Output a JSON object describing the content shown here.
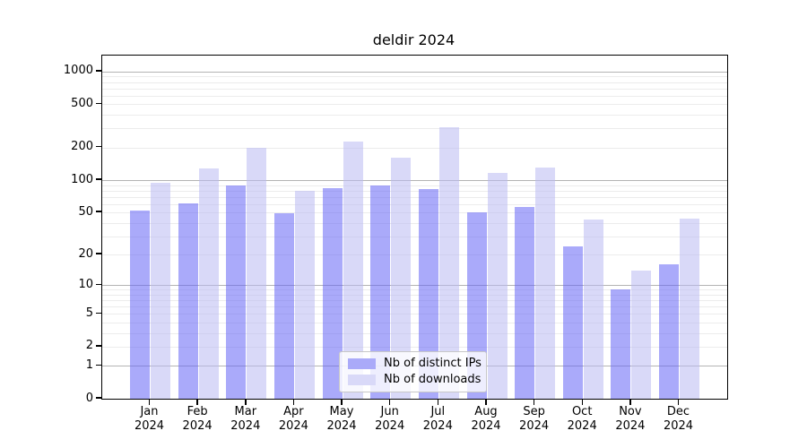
{
  "chart_data": {
    "type": "bar",
    "title": "deldir 2024",
    "months": [
      "Jan",
      "Feb",
      "Mar",
      "Apr",
      "May",
      "Jun",
      "Jul",
      "Aug",
      "Sep",
      "Oct",
      "Nov",
      "Dec"
    ],
    "year": "2024",
    "categories": [
      "Jan 2024",
      "Feb 2024",
      "Mar 2024",
      "Apr 2024",
      "May 2024",
      "Jun 2024",
      "Jul 2024",
      "Aug 2024",
      "Sep 2024",
      "Oct 2024",
      "Nov 2024",
      "Dec 2024"
    ],
    "series": [
      {
        "name": "Nb of distinct IPs",
        "key": "distinct-ips",
        "fill": "rgba(100,100,245,0.55)",
        "hex_over_white": "#aaaaf9",
        "values": [
          52,
          61,
          90,
          49,
          85,
          90,
          82,
          50,
          56,
          24,
          9,
          16
        ]
      },
      {
        "name": "Nb of downloads",
        "key": "downloads",
        "fill": "rgba(185,185,242,0.55)",
        "hex_over_white": "#d9d9f8",
        "values": [
          94,
          128,
          200,
          80,
          228,
          160,
          310,
          116,
          132,
          43,
          14,
          44
        ]
      }
    ],
    "y_scale": "log10(value+1)",
    "y_ticks": [
      0,
      1,
      2,
      5,
      10,
      20,
      50,
      100,
      200,
      500,
      1000
    ],
    "y_axis_max": 1400,
    "xlabel": "",
    "ylabel": "",
    "grid": "on",
    "gridline_major_color": "#b4b4b4",
    "gridline_minor_color": "#ececec",
    "axis_color": "#000000",
    "background_color": "#ffffff",
    "legend_position": "lower center"
  }
}
